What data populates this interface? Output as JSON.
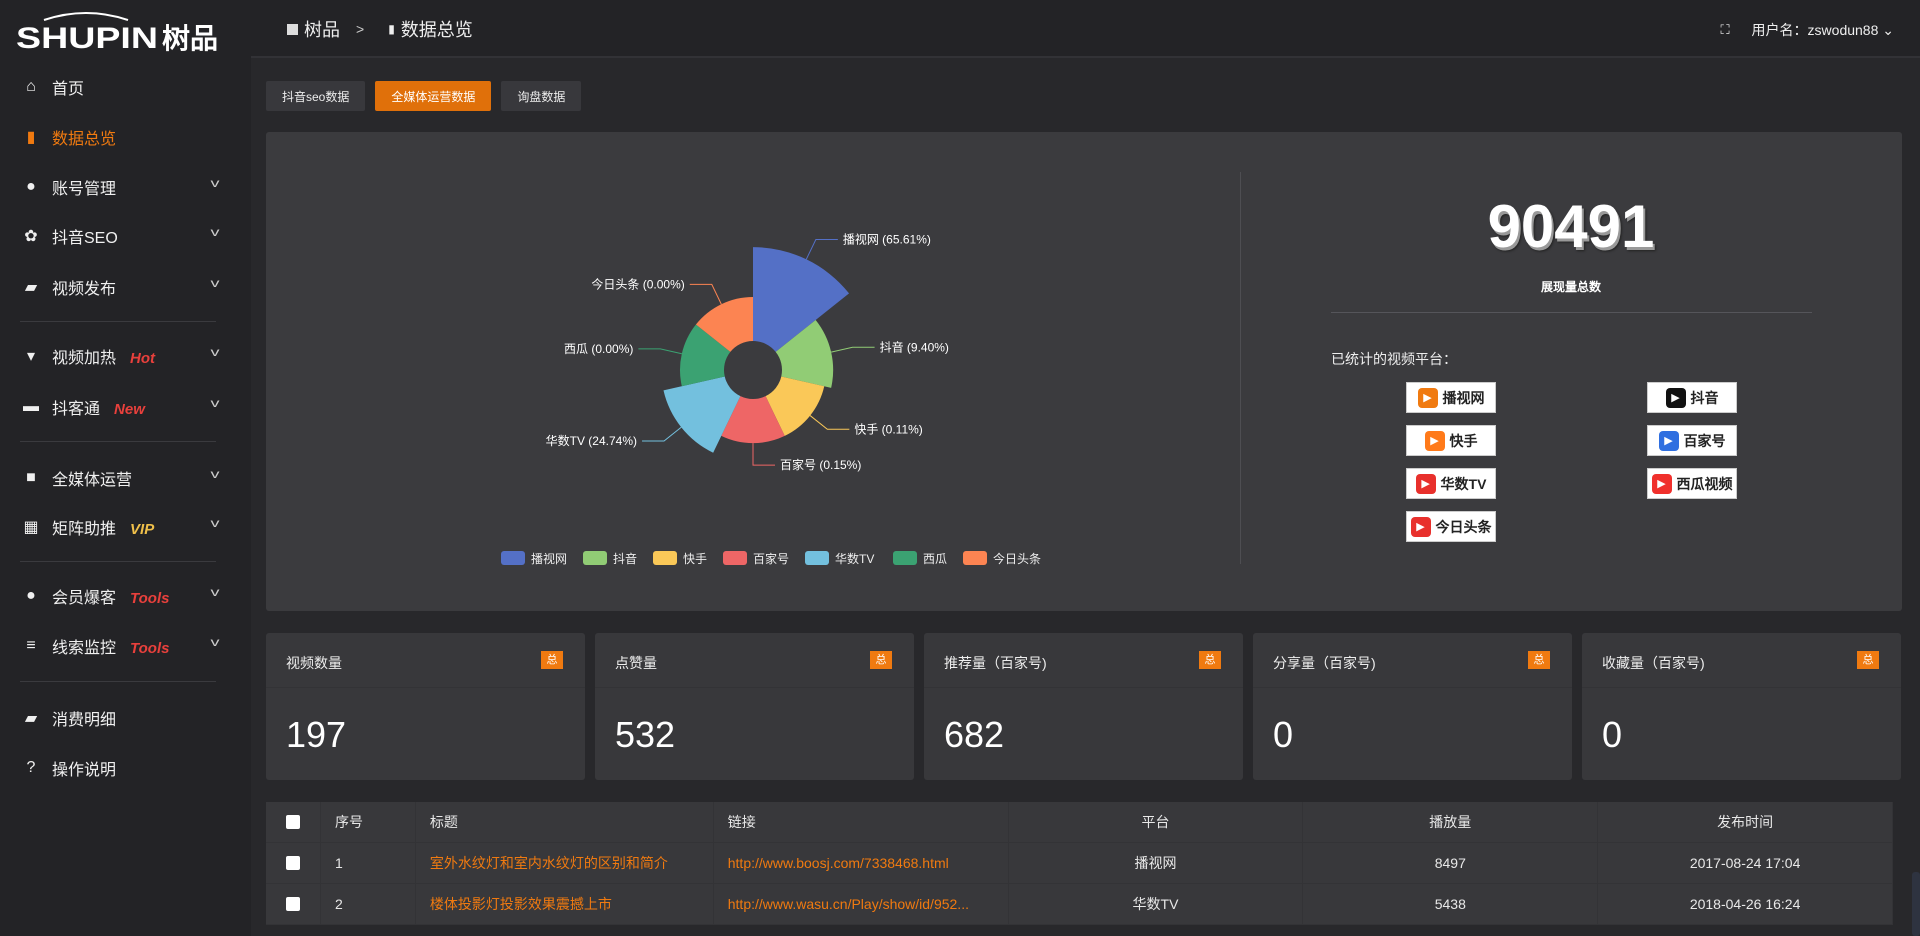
{
  "logo": {
    "text": "SHUPIN",
    "cn": "树品"
  },
  "header": {
    "breadcrumb": [
      "树品",
      "数据总览"
    ],
    "user_label": "用户名：zswodun88"
  },
  "sidebar": {
    "items": [
      {
        "label": "首页",
        "icon": "home-icon"
      },
      {
        "label": "数据总览",
        "icon": "bar-chart-icon",
        "active": true
      },
      {
        "label": "账号管理",
        "icon": "user-icon",
        "chevron": true
      },
      {
        "label": "抖音SEO",
        "icon": "gear-icon",
        "chevron": true
      },
      {
        "label": "视频发布",
        "icon": "video-camera-icon",
        "chevron": true
      },
      {
        "label": "视频加热",
        "icon": "heater-icon",
        "chevron": true,
        "tag": "Hot",
        "tag_color": "#e8403c"
      },
      {
        "label": "抖客通",
        "icon": "chat-icon",
        "chevron": true,
        "tag": "New",
        "tag_color": "#e8403c"
      },
      {
        "label": "全媒体运营",
        "icon": "monitor-icon",
        "chevron": true
      },
      {
        "label": "矩阵助推",
        "icon": "grid-icon",
        "chevron": true,
        "tag": "VIP",
        "tag_color": "#f0c04a"
      },
      {
        "label": "会员爆客",
        "icon": "member-icon",
        "chevron": true,
        "tag": "Tools",
        "tag_color": "#e8403c"
      },
      {
        "label": "线索监控",
        "icon": "sliders-icon",
        "chevron": true,
        "tag": "Tools",
        "tag_color": "#e8403c"
      },
      {
        "label": "消费明细",
        "icon": "wallet-icon"
      },
      {
        "label": "操作说明",
        "icon": "help-icon"
      }
    ]
  },
  "tabs": [
    {
      "label": "抖音seo数据"
    },
    {
      "label": "全媒体运营数据",
      "active": true
    },
    {
      "label": "询盘数据"
    }
  ],
  "chart_data": {
    "type": "pie",
    "rose": true,
    "categories": [
      "播视网",
      "抖音",
      "快手",
      "百家号",
      "华数TV",
      "西瓜",
      "今日头条"
    ],
    "values": [
      65.61,
      9.4,
      0.11,
      0.15,
      24.74,
      0.0,
      0.0
    ],
    "labels": [
      "播视网 (65.61%)",
      "抖音 (9.40%)",
      "快手 (0.11%)",
      "百家号 (0.15%)",
      "华数TV (24.74%)",
      "西瓜 (0.00%)",
      "今日头条 (0.00%)"
    ],
    "colors": [
      "#5470c6",
      "#91cc75",
      "#fac858",
      "#ee6666",
      "#73c0de",
      "#3ba272",
      "#fc8452"
    ],
    "legend": "bottom"
  },
  "summary": {
    "total": "90491",
    "total_label": "展现量总数",
    "platforms_title": "已统计的视频平台：",
    "platforms": [
      {
        "name": "播视网",
        "color": "#f07a10"
      },
      {
        "name": "抖音",
        "color": "#111"
      },
      {
        "name": "快手",
        "color": "#ff7a1a"
      },
      {
        "name": "百家号",
        "color": "#2f6fe0"
      },
      {
        "name": "华数TV",
        "color": "#e8302c"
      },
      {
        "name": "西瓜视频",
        "color": "#f0302c"
      },
      {
        "name": "今日头条",
        "color": "#e8302c"
      }
    ]
  },
  "cards": [
    {
      "title": "视频数量",
      "badge": "总",
      "value": "197"
    },
    {
      "title": "点赞量",
      "badge": "总",
      "value": "532"
    },
    {
      "title": "推荐量（百家号)",
      "badge": "总",
      "value": "682"
    },
    {
      "title": "分享量（百家号)",
      "badge": "总",
      "value": "0"
    },
    {
      "title": "收藏量（百家号)",
      "badge": "总",
      "value": "0"
    }
  ],
  "table": {
    "columns": [
      "序号",
      "标题",
      "链接",
      "平台",
      "播放量",
      "发布时间"
    ],
    "rows": [
      [
        "1",
        "室外水纹灯和室内水纹灯的区别和简介",
        "http://www.boosj.com/7338468.html",
        "播视网",
        "8497",
        "2017-08-24 17:04"
      ],
      [
        "2",
        "楼体投影灯投影效果震撼上市",
        "http://www.wasu.cn/Play/show/id/952...",
        "华数TV",
        "5438",
        "2018-04-26 16:24"
      ]
    ]
  }
}
